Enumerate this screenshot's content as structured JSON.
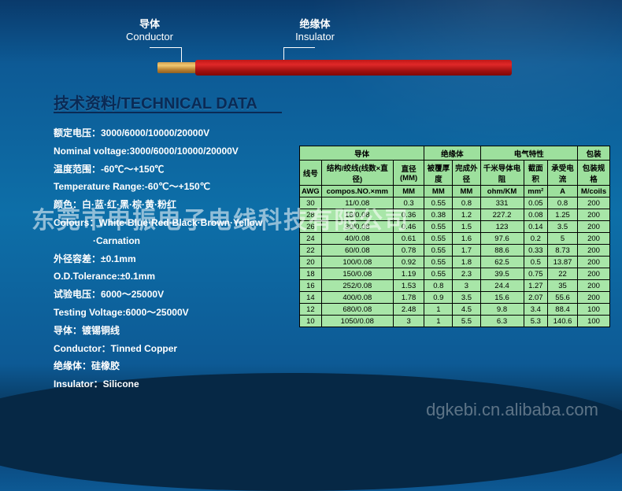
{
  "diagram": {
    "conductor_cn": "导体",
    "conductor_en": "Conductor",
    "insulator_cn": "绝缘体",
    "insulator_en": "Insulator"
  },
  "title": "技术资料/TECHNICAL DATA",
  "specs": [
    "额定电压：3000/6000/10000/20000V",
    "Nominal voltage:3000/6000/10000/20000V",
    "温度范围：-60℃～+150℃",
    "Temperature Range:-60℃～+150℃",
    "颜色：白·蓝·红·黑·棕·黄·粉红",
    "Colours：White·Blue·Red·Black·Brown·Yellow",
    "               ·Carnation",
    "外径容差：±0.1mm",
    "O.D.Tolerance:±0.1mm",
    "试验电压：6000～25000V",
    "Testing Voltage:6000～25000V",
    "导体：镀锡铜线",
    "Conductor：Tinned Copper",
    "绝缘体：硅橡胶",
    "Insulator：Silicone"
  ],
  "table": {
    "group_headers": [
      "导体",
      "绝缘体",
      "电气特性",
      "包装"
    ],
    "sub_headers_r1": [
      "线号",
      "结构/绞线(线数×直径)",
      "直径(MM)",
      "被覆厚度",
      "完成外径",
      "千米导体电阻",
      "截面积",
      "承受电流",
      "包装规格"
    ],
    "sub_headers_r2": [
      "AWG",
      "compos.NO.×mm",
      "MM",
      "MM",
      "MM",
      "ohm/KM",
      "mm²",
      "A",
      "M/coils"
    ],
    "rows": [
      [
        "30",
        "11/0.08",
        "0.3",
        "0.55",
        "0.8",
        "331",
        "0.05",
        "0.8",
        "200"
      ],
      [
        "28",
        "16/0.08",
        "0.36",
        "0.38",
        "1.2",
        "227.2",
        "0.08",
        "1.25",
        "200"
      ],
      [
        "26",
        "30/0.08",
        "0.46",
        "0.55",
        "1.5",
        "123",
        "0.14",
        "3.5",
        "200"
      ],
      [
        "24",
        "40/0.08",
        "0.61",
        "0.55",
        "1.6",
        "97.6",
        "0.2",
        "5",
        "200"
      ],
      [
        "22",
        "60/0.08",
        "0.78",
        "0.55",
        "1.7",
        "88.6",
        "0.33",
        "8.73",
        "200"
      ],
      [
        "20",
        "100/0.08",
        "0.92",
        "0.55",
        "1.8",
        "62.5",
        "0.5",
        "13.87",
        "200"
      ],
      [
        "18",
        "150/0.08",
        "1.19",
        "0.55",
        "2.3",
        "39.5",
        "0.75",
        "22",
        "200"
      ],
      [
        "16",
        "252/0.08",
        "1.53",
        "0.8",
        "3",
        "24.4",
        "1.27",
        "35",
        "200"
      ],
      [
        "14",
        "400/0.08",
        "1.78",
        "0.9",
        "3.5",
        "15.6",
        "2.07",
        "55.6",
        "200"
      ],
      [
        "12",
        "680/0.08",
        "2.48",
        "1",
        "4.5",
        "9.8",
        "3.4",
        "88.4",
        "100"
      ],
      [
        "10",
        "1050/0.08",
        "3",
        "1",
        "5.5",
        "6.3",
        "5.3",
        "140.6",
        "100"
      ]
    ]
  },
  "watermark1": "东莞市申振电子电线科技有限公司",
  "watermark2": "dgkebi.cn.alibaba.com",
  "colors": {
    "bg_top": "#0a3a6b",
    "bg_mid": "#0d6fa8",
    "insulator": "#c01818",
    "conductor": "#d4a050",
    "table_bg": "#a8e6a8",
    "title": "#0a2a55"
  }
}
